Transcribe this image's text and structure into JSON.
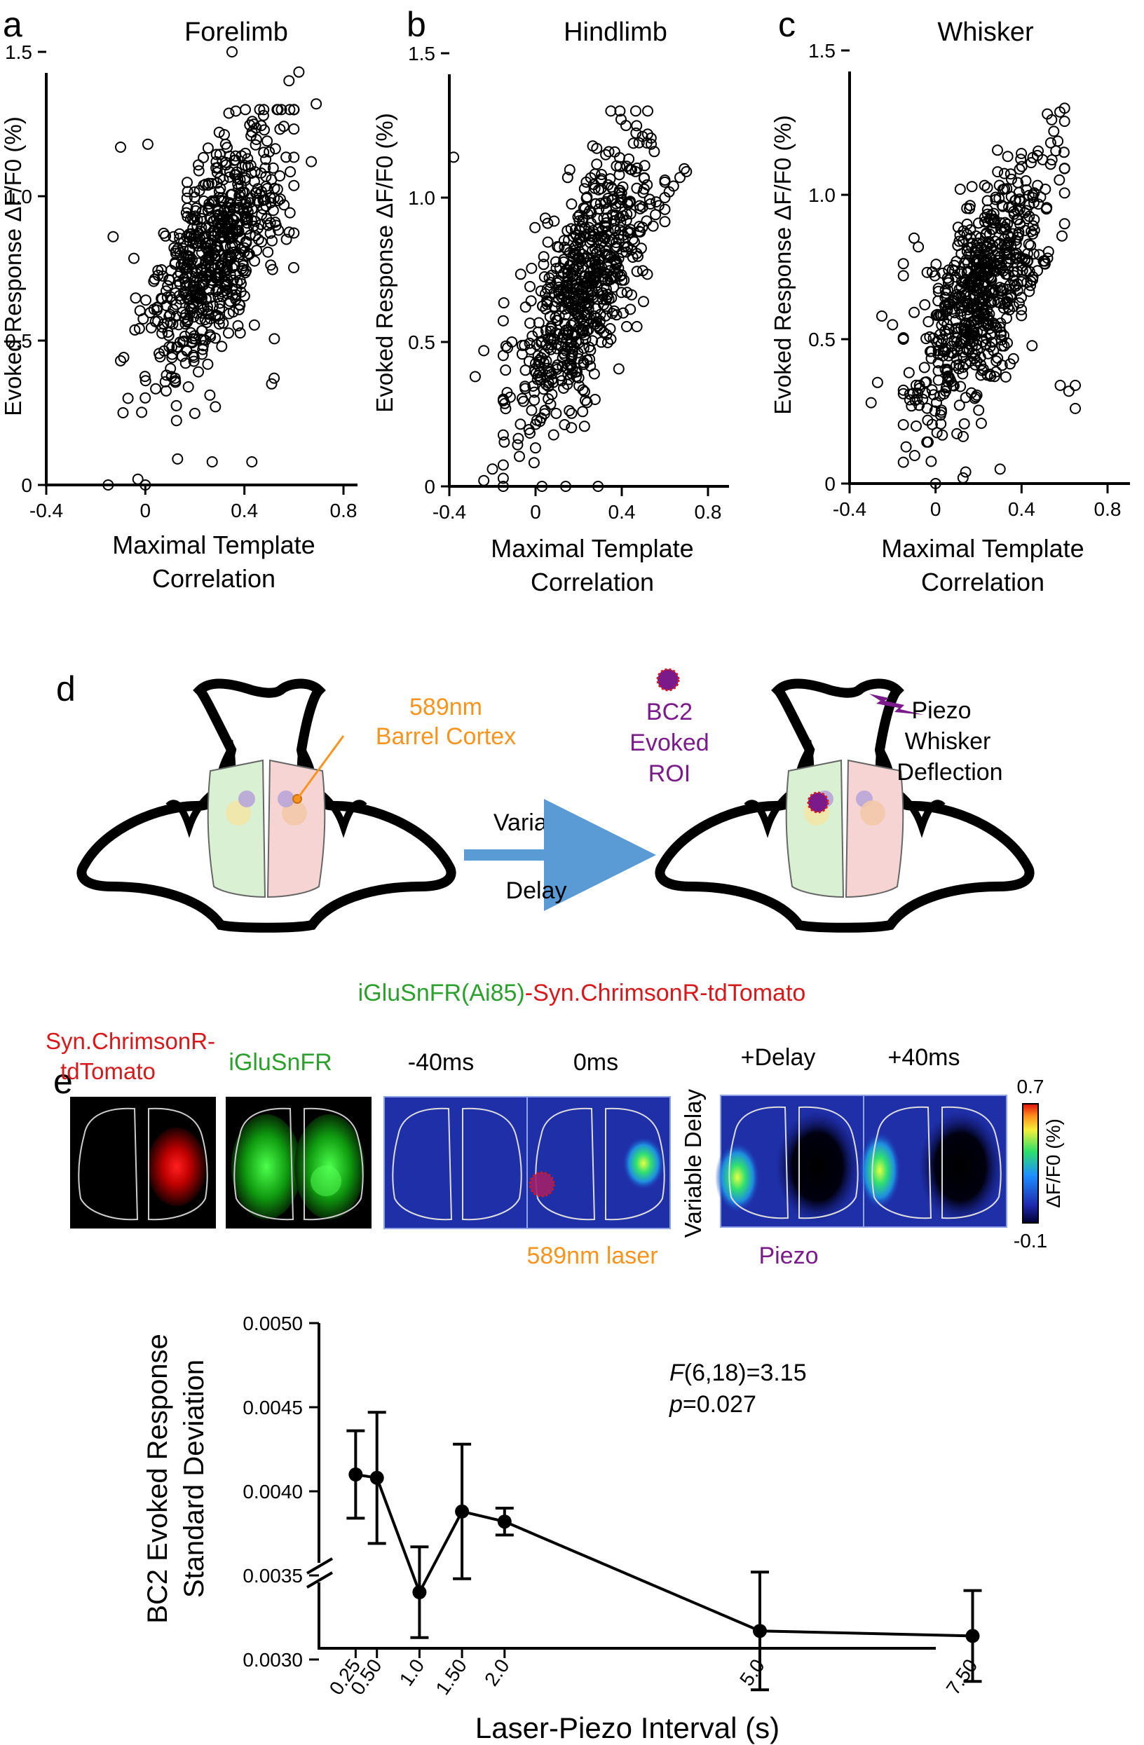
{
  "chart_data": [
    {
      "panel_letter": "a",
      "type": "scatter",
      "title": "Forelimb",
      "xlabel": [
        "Maximal Template",
        "Correlation"
      ],
      "ylabel": "Evoked Response ΔF/F0 (%)",
      "xlim": [
        -0.4,
        0.8
      ],
      "ylim": [
        0,
        1.5
      ],
      "xticks": [
        "-0.4",
        "0",
        "0.4",
        "0.8"
      ],
      "yticks": [
        "0",
        "0.5",
        "1.0",
        "1.5"
      ],
      "n_points": 650,
      "center": [
        0.28,
        0.8
      ],
      "spread": [
        0.14,
        0.21
      ],
      "slope": 1.1,
      "outliers": [
        [
          -0.13,
          0.86
        ],
        [
          -0.1,
          1.17
        ],
        [
          0.01,
          1.18
        ],
        [
          -0.07,
          0.3
        ],
        [
          -0.1,
          0.43
        ],
        [
          -0.09,
          0.25
        ],
        [
          0.35,
          1.5
        ],
        [
          0.52,
          0.37
        ],
        [
          0.51,
          0.35
        ],
        [
          0.43,
          0.08
        ],
        [
          0.67,
          1.12
        ],
        [
          0.69,
          1.32
        ],
        [
          0.62,
          1.43
        ],
        [
          0.58,
          1.4
        ],
        [
          -0.03,
          0.02
        ],
        [
          0,
          0
        ],
        [
          0.13,
          0.09
        ],
        [
          0.27,
          0.08
        ],
        [
          0.56,
          0.97
        ]
      ]
    },
    {
      "panel_letter": "b",
      "type": "scatter",
      "title": "Hindlimb",
      "xlabel": [
        "Maximal Template",
        "Correlation"
      ],
      "ylabel": "Evoked Response ΔF/F0 (%)",
      "xlim": [
        -0.4,
        0.8
      ],
      "ylim": [
        0,
        1.5
      ],
      "xticks": [
        "-0.4",
        "0",
        "0.4",
        "0.8"
      ],
      "yticks": [
        "0",
        "0.5",
        "1.0",
        "1.5"
      ],
      "n_points": 650,
      "center": [
        0.22,
        0.68
      ],
      "spread": [
        0.15,
        0.22
      ],
      "slope": 1.0,
      "outliers": [
        [
          -0.38,
          1.14
        ],
        [
          -0.24,
          0.47
        ],
        [
          -0.28,
          0.38
        ],
        [
          -0.13,
          0.48
        ],
        [
          -0.11,
          0.5
        ],
        [
          -0.24,
          0.02
        ],
        [
          -0.2,
          0.06
        ],
        [
          0.03,
          0.0
        ],
        [
          0.14,
          0.0
        ],
        [
          0.29,
          0.0
        ],
        [
          0.67,
          1.07
        ],
        [
          0.69,
          1.1
        ],
        [
          0.7,
          1.09
        ],
        [
          0.64,
          1.04
        ],
        [
          0.62,
          1.02
        ],
        [
          0.52,
          1.22
        ],
        [
          0.48,
          1.19
        ]
      ]
    },
    {
      "panel_letter": "c",
      "type": "scatter",
      "title": "Whisker",
      "xlabel": [
        "Maximal Template",
        "Correlation"
      ],
      "ylabel": "Evoked Response ΔF/F0 (%)",
      "xlim": [
        -0.4,
        0.8
      ],
      "ylim": [
        0,
        1.5
      ],
      "xticks": [
        "-0.4",
        "0",
        "0.4",
        "0.8"
      ],
      "yticks": [
        "0",
        "0.5",
        "1.0",
        "1.5"
      ],
      "n_points": 650,
      "center": [
        0.22,
        0.68
      ],
      "spread": [
        0.15,
        0.22
      ],
      "slope": 0.95,
      "outliers": [
        [
          -0.3,
          0.28
        ],
        [
          -0.27,
          0.35
        ],
        [
          -0.2,
          0.55
        ],
        [
          -0.25,
          0.58
        ],
        [
          -0.15,
          0.5
        ],
        [
          -0.1,
          0.85
        ],
        [
          -0.08,
          0.82
        ],
        [
          -0.15,
          0.72
        ],
        [
          0.58,
          0.34
        ],
        [
          0.62,
          0.32
        ],
        [
          0.65,
          0.26
        ],
        [
          0.65,
          0.34
        ],
        [
          0.54,
          1.26
        ],
        [
          0.52,
          1.28
        ],
        [
          0.55,
          1.22
        ],
        [
          0.14,
          0.04
        ],
        [
          0.3,
          0.05
        ],
        [
          0.0,
          0.0
        ]
      ]
    },
    {
      "panel_letter": "e",
      "type": "line",
      "ylabel": [
        "BC2 Evoked Response",
        "Standard Deviation"
      ],
      "xlabel": "Laser-Piezo Interval (s)",
      "x": [
        0.25,
        0.5,
        1.0,
        1.5,
        2.0,
        5.0,
        7.5
      ],
      "xtick_labels": [
        "0.25",
        "0.50",
        "1.0",
        "1.50",
        "2.0",
        "5.0",
        "7.50"
      ],
      "values": [
        0.0041,
        0.00408,
        0.0034,
        0.00388,
        0.00382,
        0.00317,
        0.00314
      ],
      "error": [
        0.00026,
        0.00039,
        0.00027,
        0.0004,
        8e-05,
        0.00035,
        0.00027
      ],
      "ylim": [
        0.0028,
        0.005
      ],
      "yticks": [
        "0.0030",
        "0.0035",
        "0.0040",
        "0.0045",
        "0.0050"
      ],
      "axis_break": true,
      "annotation": [
        "F(6,18)=3.15",
        "p=0.027"
      ]
    }
  ],
  "panel_d": {
    "letter": "d",
    "laser_label": [
      "589nm",
      "Barrel Cortex"
    ],
    "roi_label": [
      "BC2",
      "Evoked",
      "ROI"
    ],
    "piezo_label": [
      "Piezo",
      "Whisker",
      "Deflection"
    ],
    "arrow_top": "Variable",
    "arrow_bottom": "Delay",
    "strain_green": "iGluSnFR(Ai85)",
    "strain_red": "-Syn.ChrimsonR-tdTomato",
    "img_red_label": [
      "Syn.ChrimsonR-",
      "tdTomato"
    ],
    "img_green_label": "iGluSnFR",
    "frame_labels": [
      "-40ms",
      "0ms",
      "+Delay",
      "+40ms"
    ],
    "vertical_label": "Variable Delay",
    "laser_caption": "589nm laser",
    "piezo_caption": "Piezo",
    "colorbar_max": "0.7",
    "colorbar_min": "-0.1",
    "colorbar_label": "ΔF/F0 (%)",
    "colors": {
      "orange": "#f7941d",
      "purple": "#7b1a8b",
      "red": "#d7191c",
      "green": "#2ca02c",
      "arrow": "#5b9bd5"
    }
  }
}
